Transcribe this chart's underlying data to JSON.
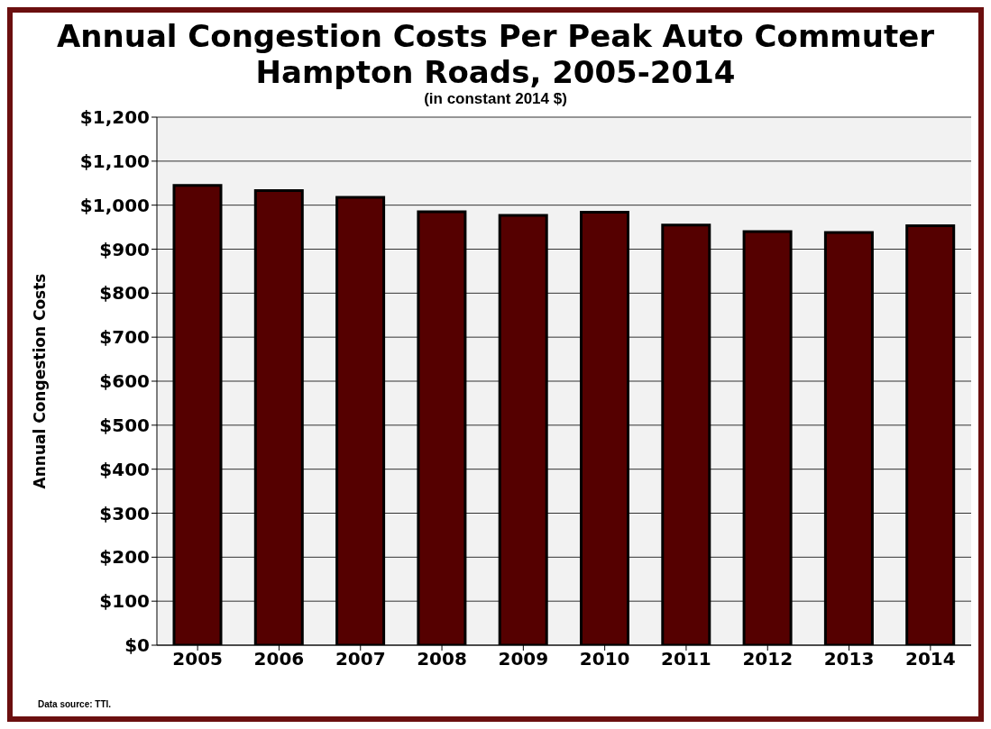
{
  "chart_data": {
    "type": "bar",
    "title": "Annual Congestion Costs Per Peak Auto Commuter\nHampton Roads, 2005-2014",
    "subtitle": "(in constant 2014 $)",
    "ylabel": "Annual Congestion Costs",
    "categories": [
      "2005",
      "2006",
      "2007",
      "2008",
      "2009",
      "2010",
      "2011",
      "2012",
      "2013",
      "2014"
    ],
    "values": [
      1045,
      1033,
      1018,
      985,
      977,
      984,
      955,
      940,
      938,
      953
    ],
    "color": "#550000",
    "ylim": [
      0,
      1200
    ],
    "yticks": [
      {
        "value": 0,
        "label": "$0"
      },
      {
        "value": 100,
        "label": "$100"
      },
      {
        "value": 200,
        "label": "$200"
      },
      {
        "value": 300,
        "label": "$300"
      },
      {
        "value": 400,
        "label": "$400"
      },
      {
        "value": 500,
        "label": "$500"
      },
      {
        "value": 600,
        "label": "$600"
      },
      {
        "value": 700,
        "label": "$700"
      },
      {
        "value": 800,
        "label": "$800"
      },
      {
        "value": 900,
        "label": "$900"
      },
      {
        "value": 1000,
        "label": "$1,000"
      },
      {
        "value": 1100,
        "label": "$1,100"
      },
      {
        "value": 1200,
        "label": "$1,200"
      }
    ],
    "grid": "y",
    "annotations": [
      "Data source: TTI."
    ]
  }
}
